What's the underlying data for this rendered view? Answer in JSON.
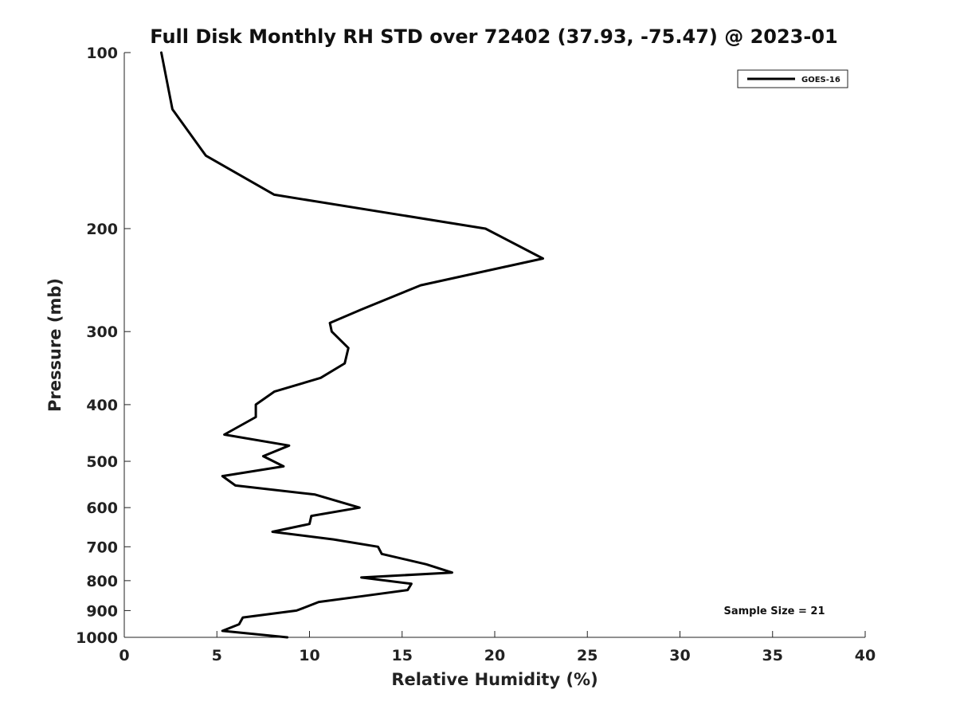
{
  "chart_data": {
    "type": "line",
    "title": "Full Disk Monthly RH STD over 72402 (37.93, -75.47) @ 2023-01",
    "xlabel": "Relative Humidity (%)",
    "ylabel": "Pressure (mb)",
    "xlim": [
      0,
      40
    ],
    "ylim": [
      100,
      1000
    ],
    "y_scale": "log",
    "y_reversed": true,
    "xticks": [
      0,
      5,
      10,
      15,
      20,
      25,
      30,
      35,
      40
    ],
    "yticks": [
      100,
      200,
      300,
      400,
      500,
      600,
      700,
      800,
      900,
      1000
    ],
    "grid": false,
    "legend_placement": "top-right",
    "series": [
      {
        "name": "GOES-16",
        "color": "#000000",
        "points": [
          [
            2.0,
            100
          ],
          [
            2.6,
            125
          ],
          [
            4.4,
            150
          ],
          [
            8.1,
            175
          ],
          [
            19.5,
            200
          ],
          [
            22.6,
            225
          ],
          [
            16.0,
            250
          ],
          [
            12.8,
            275
          ],
          [
            11.1,
            290
          ],
          [
            11.2,
            300
          ],
          [
            12.1,
            320
          ],
          [
            11.9,
            340
          ],
          [
            10.6,
            360
          ],
          [
            8.1,
            380
          ],
          [
            7.1,
            400
          ],
          [
            7.1,
            420
          ],
          [
            5.4,
            450
          ],
          [
            8.9,
            470
          ],
          [
            7.5,
            490
          ],
          [
            8.6,
            510
          ],
          [
            5.3,
            530
          ],
          [
            6.0,
            550
          ],
          [
            10.3,
            570
          ],
          [
            12.7,
            600
          ],
          [
            10.1,
            620
          ],
          [
            10.0,
            640
          ],
          [
            8.0,
            660
          ],
          [
            11.3,
            680
          ],
          [
            13.7,
            700
          ],
          [
            13.9,
            720
          ],
          [
            16.3,
            750
          ],
          [
            17.7,
            775
          ],
          [
            12.8,
            790
          ],
          [
            15.5,
            810
          ],
          [
            15.3,
            830
          ],
          [
            12.9,
            850
          ],
          [
            10.5,
            870
          ],
          [
            9.7,
            890
          ],
          [
            9.3,
            900
          ],
          [
            6.4,
            925
          ],
          [
            6.2,
            950
          ],
          [
            5.3,
            975
          ],
          [
            8.8,
            1000
          ]
        ]
      }
    ],
    "annotations": [
      "Sample Size = 21"
    ]
  }
}
